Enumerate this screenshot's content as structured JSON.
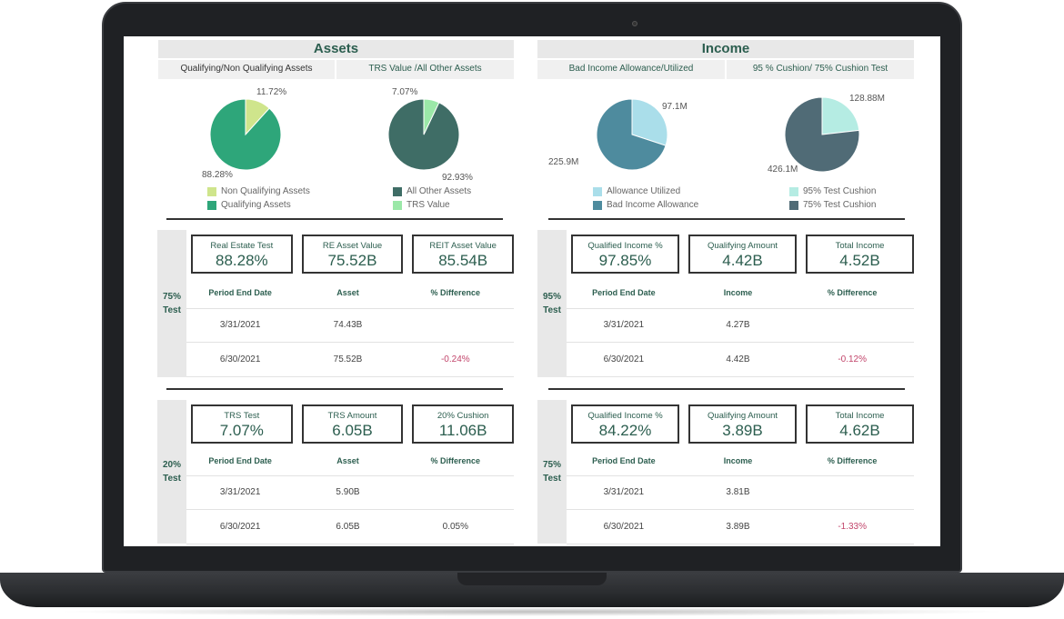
{
  "assets": {
    "title": "Assets",
    "subtitles": [
      "Qualifying/Non Qualifying Assets",
      "TRS Value /All Other Assets"
    ],
    "sections": [
      {
        "label": "75% Test",
        "kpis": [
          {
            "title": "Real Estate Test",
            "value": "88.28%"
          },
          {
            "title": "RE Asset Value",
            "value": "75.52B"
          },
          {
            "title": "REIT Asset Value",
            "value": "85.54B"
          }
        ],
        "columns": [
          "Period End Date",
          "Asset",
          "% Difference"
        ],
        "rows": [
          [
            "3/31/2021",
            "74.43B",
            ""
          ],
          [
            "6/30/2021",
            "75.52B",
            "-0.24%"
          ]
        ]
      },
      {
        "label": "20% Test",
        "kpis": [
          {
            "title": "TRS Test",
            "value": "7.07%"
          },
          {
            "title": "TRS Amount",
            "value": "6.05B"
          },
          {
            "title": "20% Cushion",
            "value": "11.06B"
          }
        ],
        "columns": [
          "Period End Date",
          "Asset",
          "% Difference"
        ],
        "rows": [
          [
            "3/31/2021",
            "5.90B",
            ""
          ],
          [
            "6/30/2021",
            "6.05B",
            "0.05%"
          ]
        ]
      }
    ]
  },
  "income": {
    "title": "Income",
    "subtitles": [
      "Bad Income Allowance/Utilized",
      "95 % Cushion/ 75% Cushion Test"
    ],
    "sections": [
      {
        "label": "95% Test",
        "kpis": [
          {
            "title": "Qualified Income %",
            "value": "97.85%"
          },
          {
            "title": "Qualifying Amount",
            "value": "4.42B"
          },
          {
            "title": "Total Income",
            "value": "4.52B"
          }
        ],
        "columns": [
          "Period End Date",
          "Income",
          "% Difference"
        ],
        "rows": [
          [
            "3/31/2021",
            "4.27B",
            ""
          ],
          [
            "6/30/2021",
            "4.42B",
            "-0.12%"
          ]
        ]
      },
      {
        "label": "75% Test",
        "kpis": [
          {
            "title": "Qualified Income %",
            "value": "84.22%"
          },
          {
            "title": "Qualifying Amount",
            "value": "3.89B"
          },
          {
            "title": "Total Income",
            "value": "4.62B"
          }
        ],
        "columns": [
          "Period End Date",
          "Income",
          "% Difference"
        ],
        "rows": [
          [
            "3/31/2021",
            "3.81B",
            ""
          ],
          [
            "6/30/2021",
            "3.89B",
            "-1.33%"
          ]
        ]
      }
    ]
  },
  "chart_data": [
    {
      "type": "pie",
      "slices": [
        {
          "name": "Non Qualifying Assets",
          "value": 11.72,
          "label": "11.72%",
          "color": "#cfe58c"
        },
        {
          "name": "Qualifying Assets",
          "value": 88.28,
          "label": "88.28%",
          "color": "#2ea67a"
        }
      ]
    },
    {
      "type": "pie",
      "slices": [
        {
          "name": "All Other Assets",
          "value": 92.93,
          "label": "92.93%",
          "color": "#3f6d66"
        },
        {
          "name": "TRS Value",
          "value": 7.07,
          "label": "7.07%",
          "color": "#9be8a8"
        }
      ]
    },
    {
      "type": "pie",
      "slices": [
        {
          "name": "Allowance Utilized",
          "value": 97.1,
          "label": "97.1M",
          "color": "#aadeea"
        },
        {
          "name": "Bad Income Allowance",
          "value": 225.9,
          "label": "225.9M",
          "color": "#4e8b9e"
        }
      ]
    },
    {
      "type": "pie",
      "slices": [
        {
          "name": "95% Test Cushion",
          "value": 128.88,
          "label": "128.88M",
          "color": "#b5ece3"
        },
        {
          "name": "75% Test Cushion",
          "value": 426.1,
          "label": "426.1M",
          "color": "#506b76"
        }
      ]
    }
  ]
}
